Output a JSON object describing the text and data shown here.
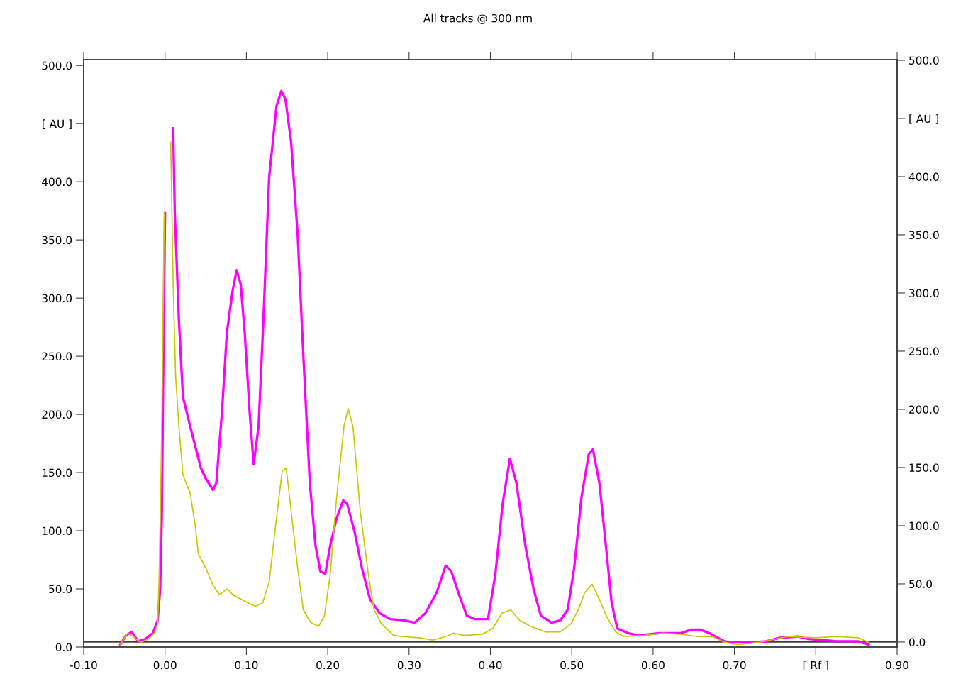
{
  "chart_data": {
    "type": "line",
    "title": "All tracks @ 300 nm",
    "xlim": [
      -0.1,
      0.9
    ],
    "xticks": [
      {
        "value": -0.1,
        "label": "-0.10"
      },
      {
        "value": 0.0,
        "label": "0.00"
      },
      {
        "value": 0.1,
        "label": "0.10"
      },
      {
        "value": 0.2,
        "label": "0.20"
      },
      {
        "value": 0.3,
        "label": "0.30"
      },
      {
        "value": 0.4,
        "label": "0.40"
      },
      {
        "value": 0.5,
        "label": "0.50"
      },
      {
        "value": 0.6,
        "label": "0.60"
      },
      {
        "value": 0.7,
        "label": "0.70"
      },
      {
        "value": 0.8,
        "label": "[ Rf ]"
      },
      {
        "value": 0.9,
        "label": "0.90"
      }
    ],
    "ylim": [
      0,
      505
    ],
    "yticks": [
      {
        "value": 0,
        "label": "0.0"
      },
      {
        "value": 50,
        "label": "50.0"
      },
      {
        "value": 100,
        "label": "100.0"
      },
      {
        "value": 150,
        "label": "150.0"
      },
      {
        "value": 200,
        "label": "200.0"
      },
      {
        "value": 250,
        "label": "250.0"
      },
      {
        "value": 300,
        "label": "300.0"
      },
      {
        "value": 350,
        "label": "350.0"
      },
      {
        "value": 400,
        "label": "400.0"
      },
      {
        "value": 450,
        "label": "[ AU ]"
      },
      {
        "value": 500,
        "label": "500.0"
      }
    ],
    "y2lim": [
      -4.3,
      500.6
    ],
    "y2ticks": [
      {
        "value": 0,
        "label": "0.0"
      },
      {
        "value": 50,
        "label": "50.0"
      },
      {
        "value": 100,
        "label": "100.0"
      },
      {
        "value": 150,
        "label": "150.0"
      },
      {
        "value": 200,
        "label": "200.0"
      },
      {
        "value": 250,
        "label": "250.0"
      },
      {
        "value": 300,
        "label": "300.0"
      },
      {
        "value": 350,
        "label": "350.0"
      },
      {
        "value": 400,
        "label": "400.0"
      },
      {
        "value": 450,
        "label": "[ AU ]"
      },
      {
        "value": 500,
        "label": "500.0"
      }
    ],
    "ref_lines": [
      {
        "axis": "y2",
        "value": 0,
        "color": "#404040"
      }
    ],
    "grid": false,
    "legend": false,
    "marker": "none",
    "line_style": "solid",
    "series": [
      {
        "color": "#ff00ff",
        "x": [
          -0.055,
          -0.048,
          -0.041,
          -0.033,
          -0.024,
          -0.015,
          -0.009,
          -0.006,
          -0.004,
          -0.002,
          0.0,
          0.001,
          0.008,
          0.01,
          0.012,
          0.017,
          0.022,
          0.033,
          0.044,
          0.05,
          0.059,
          0.063,
          0.07,
          0.076,
          0.083,
          0.088,
          0.093,
          0.098,
          0.104,
          0.109,
          0.115,
          0.121,
          0.128,
          0.137,
          0.143,
          0.148,
          0.155,
          0.163,
          0.17,
          0.178,
          0.185,
          0.191,
          0.197,
          0.203,
          0.211,
          0.219,
          0.224,
          0.233,
          0.242,
          0.252,
          0.264,
          0.277,
          0.294,
          0.307,
          0.32,
          0.334,
          0.345,
          0.352,
          0.362,
          0.371,
          0.381,
          0.397,
          0.406,
          0.415,
          0.424,
          0.432,
          0.443,
          0.453,
          0.462,
          0.475,
          0.486,
          0.495,
          0.503,
          0.512,
          0.521,
          0.526,
          0.534,
          0.543,
          0.549,
          0.556,
          0.569,
          0.582,
          0.608,
          0.634,
          0.647,
          0.658,
          0.669,
          0.682,
          0.691,
          0.721,
          0.739,
          0.756,
          0.778,
          0.791,
          0.826,
          0.852,
          0.865
        ],
        "values": [
          2,
          10,
          13,
          5,
          7,
          12,
          23,
          50,
          111,
          251,
          373,
          null,
          null,
          446,
          373,
          282,
          215,
          184,
          154,
          145,
          135,
          141,
          202,
          270,
          306,
          324,
          312,
          270,
          202,
          157,
          190,
          282,
          404,
          465,
          478,
          471,
          434,
          355,
          251,
          141,
          87,
          65,
          63,
          87,
          111,
          126,
          123,
          99,
          68,
          41,
          29,
          24,
          23,
          21,
          29,
          47,
          70,
          65,
          44,
          27,
          24,
          24,
          62,
          123,
          162,
          141,
          87,
          50,
          27,
          21,
          23,
          32,
          68,
          129,
          166,
          170,
          141,
          80,
          38,
          16,
          12,
          10,
          12,
          12,
          15,
          15,
          12,
          7,
          4,
          4,
          5,
          8,
          9,
          7,
          5,
          5,
          2
        ]
      },
      {
        "color": "#c8c800",
        "x": [
          -0.055,
          -0.046,
          -0.039,
          -0.03,
          -0.02,
          -0.013,
          -0.009,
          -0.007,
          -0.004,
          -0.001,
          0.001,
          0.005,
          0.007,
          0.01,
          0.013,
          0.017,
          0.022,
          0.031,
          0.037,
          0.041,
          0.05,
          0.059,
          0.067,
          0.076,
          0.085,
          0.094,
          0.102,
          0.111,
          0.12,
          0.128,
          0.137,
          0.144,
          0.149,
          0.156,
          0.163,
          0.17,
          0.179,
          0.189,
          0.196,
          0.203,
          0.211,
          0.22,
          0.225,
          0.231,
          0.24,
          0.25,
          0.257,
          0.266,
          0.281,
          0.294,
          0.312,
          0.329,
          0.345,
          0.355,
          0.368,
          0.39,
          0.403,
          0.414,
          0.425,
          0.436,
          0.449,
          0.468,
          0.486,
          0.499,
          0.508,
          0.516,
          0.525,
          0.534,
          0.543,
          0.554,
          0.564,
          0.59,
          0.612,
          0.634,
          0.655,
          0.673,
          0.688,
          0.704,
          0.73,
          0.765,
          0.8,
          0.826,
          0.852,
          0.865
        ],
        "values": [
          2,
          12,
          9,
          4,
          7,
          12,
          20,
          68,
          190,
          373,
          null,
          null,
          434,
          312,
          233,
          190,
          148,
          132,
          105,
          80,
          68,
          53,
          45,
          50,
          44,
          41,
          38,
          35,
          38,
          56,
          111,
          151,
          154,
          111,
          68,
          32,
          21,
          18,
          27,
          62,
          129,
          190,
          205,
          190,
          117,
          62,
          32,
          20,
          10,
          9,
          8,
          6,
          9,
          12,
          10,
          11,
          16,
          29,
          32,
          23,
          18,
          13,
          13,
          20,
          32,
          47,
          54,
          41,
          26,
          13,
          9,
          10,
          12,
          11,
          9,
          9,
          4,
          2,
          4,
          9,
          8,
          9,
          8,
          4
        ]
      }
    ]
  }
}
